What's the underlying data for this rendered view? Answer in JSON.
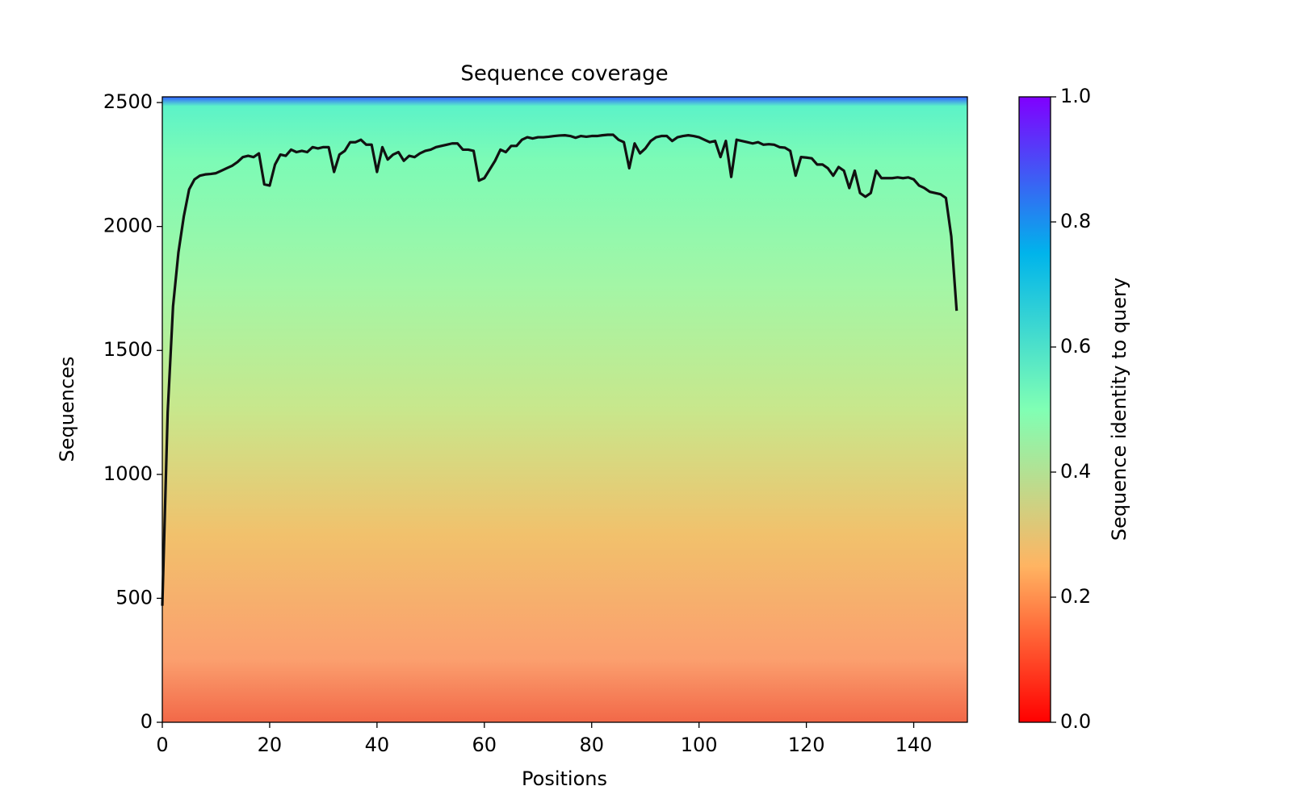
{
  "chart_data": {
    "type": "line",
    "title": "Sequence coverage",
    "x_label": "Positions",
    "y_label": "Sequences",
    "color": "#111111",
    "x": [
      0,
      1,
      2,
      3,
      4,
      5,
      6,
      7,
      8,
      9,
      10,
      11,
      12,
      13,
      14,
      15,
      16,
      17,
      18,
      19,
      20,
      21,
      22,
      23,
      24,
      25,
      26,
      27,
      28,
      29,
      30,
      31,
      32,
      33,
      34,
      35,
      36,
      37,
      38,
      39,
      40,
      41,
      42,
      43,
      44,
      45,
      46,
      47,
      48,
      49,
      50,
      51,
      52,
      53,
      54,
      55,
      56,
      57,
      58,
      59,
      60,
      61,
      62,
      63,
      64,
      65,
      66,
      67,
      68,
      69,
      70,
      71,
      72,
      73,
      74,
      75,
      76,
      77,
      78,
      79,
      80,
      81,
      82,
      83,
      84,
      85,
      86,
      87,
      88,
      89,
      90,
      91,
      92,
      93,
      94,
      95,
      96,
      97,
      98,
      99,
      100,
      101,
      102,
      103,
      104,
      105,
      106,
      107,
      108,
      109,
      110,
      111,
      112,
      113,
      114,
      115,
      116,
      117,
      118,
      119,
      120,
      121,
      122,
      123,
      124,
      125,
      126,
      127,
      128,
      129,
      130,
      131,
      132,
      133,
      134,
      135,
      136,
      137,
      138,
      139,
      140,
      141,
      142,
      143,
      144,
      145,
      146,
      147,
      148
    ],
    "values": [
      470,
      1250,
      1678,
      1895,
      2040,
      2150,
      2190,
      2205,
      2210,
      2212,
      2215,
      2225,
      2235,
      2245,
      2260,
      2280,
      2285,
      2280,
      2295,
      2170,
      2165,
      2250,
      2290,
      2285,
      2310,
      2300,
      2305,
      2300,
      2320,
      2315,
      2320,
      2320,
      2220,
      2290,
      2305,
      2340,
      2340,
      2350,
      2330,
      2330,
      2220,
      2320,
      2270,
      2290,
      2300,
      2265,
      2285,
      2280,
      2295,
      2305,
      2310,
      2320,
      2325,
      2330,
      2335,
      2335,
      2310,
      2310,
      2305,
      2185,
      2195,
      2230,
      2265,
      2310,
      2300,
      2325,
      2325,
      2350,
      2360,
      2355,
      2360,
      2360,
      2362,
      2365,
      2367,
      2368,
      2365,
      2358,
      2365,
      2362,
      2365,
      2365,
      2368,
      2370,
      2370,
      2350,
      2340,
      2235,
      2335,
      2295,
      2315,
      2345,
      2360,
      2365,
      2365,
      2345,
      2360,
      2365,
      2368,
      2365,
      2360,
      2350,
      2340,
      2345,
      2280,
      2345,
      2200,
      2350,
      2345,
      2340,
      2335,
      2340,
      2330,
      2332,
      2330,
      2320,
      2318,
      2305,
      2205,
      2280,
      2278,
      2275,
      2250,
      2250,
      2235,
      2205,
      2240,
      2225,
      2155,
      2225,
      2135,
      2120,
      2135,
      2225,
      2195,
      2195,
      2195,
      2198,
      2195,
      2198,
      2190,
      2165,
      2155,
      2140,
      2135,
      2130,
      2115,
      1960,
      1660
    ],
    "xlim": [
      0,
      150
    ],
    "xticks": [
      0,
      20,
      40,
      60,
      80,
      100,
      120,
      140
    ],
    "ylim": [
      0,
      2523
    ],
    "yticks": [
      0,
      500,
      1000,
      1500,
      2000,
      2500
    ],
    "colorbar": {
      "label": "Sequence identity to query",
      "lim": [
        0,
        1
      ],
      "ticks": [
        {
          "value": 0,
          "label": "0.0"
        },
        {
          "value": 0.2,
          "label": "0.2"
        },
        {
          "value": 0.4,
          "label": "0.4"
        },
        {
          "value": 0.6,
          "label": "0.6"
        },
        {
          "value": 0.8,
          "label": "0.8"
        },
        {
          "value": 1,
          "label": "1.0"
        }
      ],
      "colors": [
        "#ff0000",
        "#ffb462",
        "#80ffb4",
        "#00b4eb",
        "#8000ff"
      ]
    }
  }
}
